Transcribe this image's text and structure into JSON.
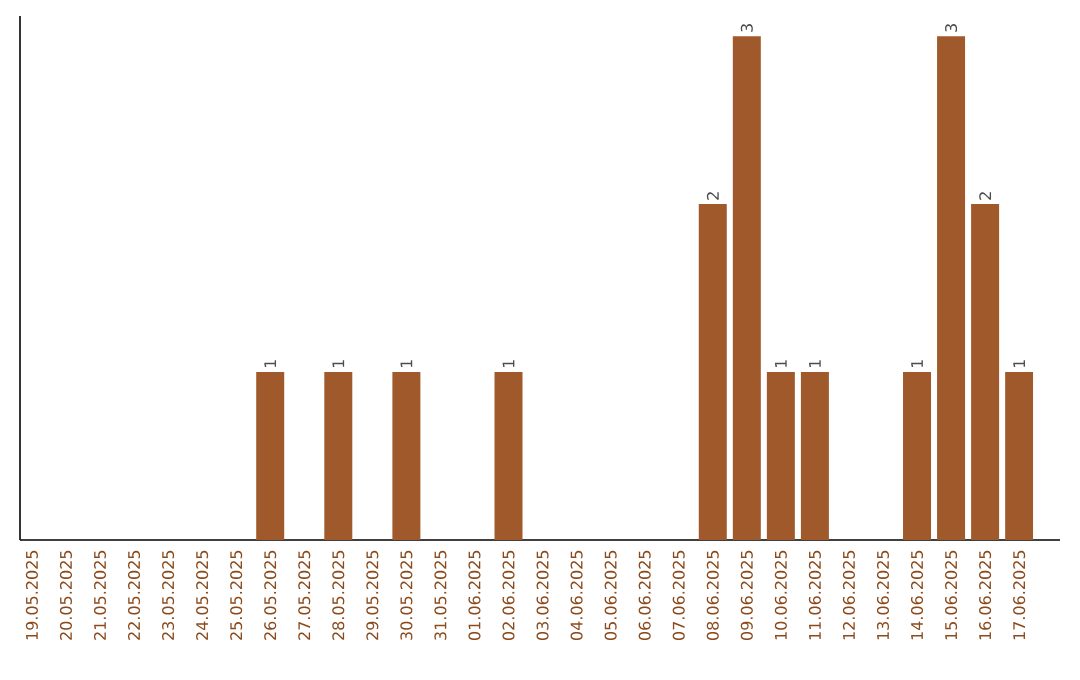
{
  "chart_data": {
    "type": "bar",
    "categories": [
      "19.05.2025",
      "20.05.2025",
      "21.05.2025",
      "22.05.2025",
      "23.05.2025",
      "24.05.2025",
      "25.05.2025",
      "26.05.2025",
      "27.05.2025",
      "28.05.2025",
      "29.05.2025",
      "30.05.2025",
      "31.05.2025",
      "01.06.2025",
      "02.06.2025",
      "03.06.2025",
      "04.06.2025",
      "05.06.2025",
      "06.06.2025",
      "07.06.2025",
      "08.06.2025",
      "09.06.2025",
      "10.06.2025",
      "11.06.2025",
      "12.06.2025",
      "13.06.2025",
      "14.06.2025",
      "15.06.2025",
      "16.06.2025",
      "17.06.2025"
    ],
    "values": [
      0,
      0,
      0,
      0,
      0,
      0,
      0,
      1,
      0,
      1,
      0,
      1,
      0,
      0,
      1,
      0,
      0,
      0,
      0,
      0,
      2,
      3,
      1,
      1,
      0,
      0,
      1,
      3,
      2,
      1
    ],
    "value_labels": [
      null,
      null,
      null,
      null,
      null,
      null,
      null,
      "1",
      null,
      "1",
      null,
      "1",
      null,
      null,
      "1",
      null,
      null,
      null,
      null,
      null,
      "2",
      "3",
      "1",
      "1",
      null,
      null,
      "1",
      "3",
      "2",
      "1"
    ],
    "color": "#a0592a",
    "ylim": [
      0,
      3.12
    ],
    "tick_labels": "x"
  }
}
